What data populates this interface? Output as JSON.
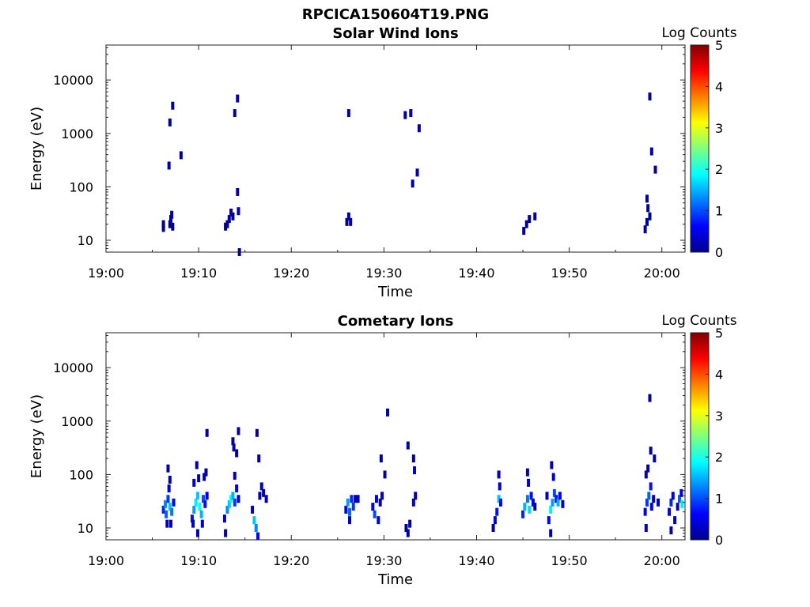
{
  "figure": {
    "filename_title": "RPCICA150604T19.PNG"
  },
  "chart_data": [
    {
      "type": "heatmap",
      "title": "Solar Wind Ions",
      "xlabel": "Time",
      "ylabel": "Energy (eV)",
      "x_ticks": [
        "19:00",
        "19:10",
        "19:20",
        "19:30",
        "19:40",
        "19:50",
        "20:00"
      ],
      "x_range_minutes": [
        0,
        62.5
      ],
      "y_ticks": [
        10,
        100,
        1000,
        10000
      ],
      "y_scale": "log",
      "ylim": [
        6,
        45000
      ],
      "colorbar": {
        "label": "Log Counts",
        "ticks": [
          0,
          1,
          2,
          3,
          4,
          5
        ],
        "range": [
          0,
          5
        ],
        "colormap": "jet"
      },
      "cells": [
        {
          "t": 6.2,
          "e": 17,
          "v": 0.1
        },
        {
          "t": 6.2,
          "e": 20,
          "v": 0.1
        },
        {
          "t": 6.9,
          "e": 20,
          "v": 0.1
        },
        {
          "t": 7.0,
          "e": 25,
          "v": 0.2
        },
        {
          "t": 7.1,
          "e": 30,
          "v": 0.1
        },
        {
          "t": 7.2,
          "e": 18,
          "v": 0.1
        },
        {
          "t": 6.8,
          "e": 250,
          "v": 0.2
        },
        {
          "t": 6.9,
          "e": 1600,
          "v": 0.2
        },
        {
          "t": 7.2,
          "e": 3300,
          "v": 0.2
        },
        {
          "t": 8.1,
          "e": 390,
          "v": 0.2
        },
        {
          "t": 12.9,
          "e": 18,
          "v": 0.1
        },
        {
          "t": 13.1,
          "e": 20,
          "v": 0.1
        },
        {
          "t": 13.3,
          "e": 25,
          "v": 0.2
        },
        {
          "t": 13.5,
          "e": 33,
          "v": 0.1
        },
        {
          "t": 13.7,
          "e": 28,
          "v": 0.1
        },
        {
          "t": 14.3,
          "e": 35,
          "v": 0.2
        },
        {
          "t": 14.2,
          "e": 80,
          "v": 0.2
        },
        {
          "t": 13.9,
          "e": 2400,
          "v": 0.2
        },
        {
          "t": 14.2,
          "e": 4500,
          "v": 0.2
        },
        {
          "t": 14.4,
          "e": 6,
          "v": 0.2
        },
        {
          "t": 26.0,
          "e": 22,
          "v": 0.1
        },
        {
          "t": 26.2,
          "e": 28,
          "v": 0.2
        },
        {
          "t": 26.4,
          "e": 22,
          "v": 0.1
        },
        {
          "t": 26.2,
          "e": 2400,
          "v": 0.2
        },
        {
          "t": 32.3,
          "e": 2200,
          "v": 0.2
        },
        {
          "t": 32.9,
          "e": 2400,
          "v": 0.2
        },
        {
          "t": 33.8,
          "e": 1250,
          "v": 0.2
        },
        {
          "t": 33.6,
          "e": 185,
          "v": 0.2
        },
        {
          "t": 33.1,
          "e": 115,
          "v": 0.2
        },
        {
          "t": 45.1,
          "e": 15,
          "v": 0.1
        },
        {
          "t": 45.4,
          "e": 20,
          "v": 0.1
        },
        {
          "t": 45.7,
          "e": 25,
          "v": 0.1
        },
        {
          "t": 46.3,
          "e": 28,
          "v": 0.2
        },
        {
          "t": 58.2,
          "e": 16,
          "v": 0.1
        },
        {
          "t": 58.4,
          "e": 22,
          "v": 0.1
        },
        {
          "t": 58.5,
          "e": 40,
          "v": 0.1
        },
        {
          "t": 58.4,
          "e": 60,
          "v": 0.2
        },
        {
          "t": 58.7,
          "e": 28,
          "v": 0.1
        },
        {
          "t": 58.7,
          "e": 4900,
          "v": 0.2
        },
        {
          "t": 58.9,
          "e": 460,
          "v": 0.2
        },
        {
          "t": 59.3,
          "e": 210,
          "v": 0.2
        }
      ]
    },
    {
      "type": "heatmap",
      "title": "Cometary Ions",
      "xlabel": "Time",
      "ylabel": "Energy (eV)",
      "x_ticks": [
        "19:00",
        "19:10",
        "19:20",
        "19:30",
        "19:40",
        "19:50",
        "20:00"
      ],
      "x_range_minutes": [
        0,
        62.5
      ],
      "y_ticks": [
        10,
        100,
        1000,
        10000
      ],
      "y_scale": "log",
      "ylim": [
        6,
        45000
      ],
      "colorbar": {
        "label": "Log Counts",
        "ticks": [
          0,
          1,
          2,
          3,
          4,
          5
        ],
        "range": [
          0,
          5
        ],
        "colormap": "jet"
      },
      "cells": [
        {
          "t": 6.2,
          "e": 22,
          "v": 0.8
        },
        {
          "t": 6.4,
          "e": 28,
          "v": 1.3
        },
        {
          "t": 6.5,
          "e": 18,
          "v": 1.1
        },
        {
          "t": 6.7,
          "e": 35,
          "v": 0.9
        },
        {
          "t": 6.9,
          "e": 25,
          "v": 1.6
        },
        {
          "t": 7.1,
          "e": 20,
          "v": 1.2
        },
        {
          "t": 7.3,
          "e": 30,
          "v": 0.6
        },
        {
          "t": 6.6,
          "e": 12,
          "v": 0.3
        },
        {
          "t": 7.0,
          "e": 12,
          "v": 0.3
        },
        {
          "t": 6.8,
          "e": 55,
          "v": 0.4
        },
        {
          "t": 6.9,
          "e": 80,
          "v": 0.3
        },
        {
          "t": 6.7,
          "e": 130,
          "v": 0.2
        },
        {
          "t": 9.3,
          "e": 15,
          "v": 0.7
        },
        {
          "t": 9.5,
          "e": 22,
          "v": 1.4
        },
        {
          "t": 9.7,
          "e": 30,
          "v": 1.8
        },
        {
          "t": 9.9,
          "e": 40,
          "v": 1.6
        },
        {
          "t": 10.1,
          "e": 25,
          "v": 1.9
        },
        {
          "t": 10.3,
          "e": 18,
          "v": 1.5
        },
        {
          "t": 10.5,
          "e": 35,
          "v": 1.0
        },
        {
          "t": 10.7,
          "e": 28,
          "v": 0.7
        },
        {
          "t": 10.9,
          "e": 40,
          "v": 0.5
        },
        {
          "t": 9.4,
          "e": 12,
          "v": 0.3
        },
        {
          "t": 9.9,
          "e": 8,
          "v": 0.3
        },
        {
          "t": 10.4,
          "e": 12,
          "v": 0.4
        },
        {
          "t": 9.5,
          "e": 70,
          "v": 0.4
        },
        {
          "t": 9.8,
          "e": 150,
          "v": 0.2
        },
        {
          "t": 10.0,
          "e": 85,
          "v": 0.3
        },
        {
          "t": 10.6,
          "e": 90,
          "v": 0.2
        },
        {
          "t": 10.8,
          "e": 110,
          "v": 0.2
        },
        {
          "t": 10.9,
          "e": 600,
          "v": 0.2
        },
        {
          "t": 12.8,
          "e": 15,
          "v": 0.3
        },
        {
          "t": 13.1,
          "e": 22,
          "v": 1.3
        },
        {
          "t": 13.3,
          "e": 28,
          "v": 1.6
        },
        {
          "t": 13.5,
          "e": 35,
          "v": 1.9
        },
        {
          "t": 13.7,
          "e": 40,
          "v": 1.5
        },
        {
          "t": 13.9,
          "e": 30,
          "v": 0.9
        },
        {
          "t": 14.1,
          "e": 55,
          "v": 0.5
        },
        {
          "t": 14.3,
          "e": 35,
          "v": 0.4
        },
        {
          "t": 12.9,
          "e": 8,
          "v": 0.3
        },
        {
          "t": 13.9,
          "e": 95,
          "v": 0.3
        },
        {
          "t": 13.7,
          "e": 420,
          "v": 0.2
        },
        {
          "t": 13.8,
          "e": 320,
          "v": 0.2
        },
        {
          "t": 14.1,
          "e": 250,
          "v": 0.2
        },
        {
          "t": 14.3,
          "e": 650,
          "v": 0.2
        },
        {
          "t": 15.8,
          "e": 22,
          "v": 0.4
        },
        {
          "t": 16.0,
          "e": 14,
          "v": 1.6
        },
        {
          "t": 16.2,
          "e": 10,
          "v": 1.3
        },
        {
          "t": 16.4,
          "e": 7,
          "v": 0.6
        },
        {
          "t": 16.6,
          "e": 40,
          "v": 0.3
        },
        {
          "t": 16.8,
          "e": 60,
          "v": 0.4
        },
        {
          "t": 17.0,
          "e": 45,
          "v": 0.3
        },
        {
          "t": 17.3,
          "e": 35,
          "v": 0.3
        },
        {
          "t": 16.5,
          "e": 200,
          "v": 0.2
        },
        {
          "t": 16.3,
          "e": 600,
          "v": 0.2
        },
        {
          "t": 25.9,
          "e": 22,
          "v": 0.6
        },
        {
          "t": 26.1,
          "e": 30,
          "v": 1.4
        },
        {
          "t": 26.3,
          "e": 20,
          "v": 1.1
        },
        {
          "t": 26.5,
          "e": 35,
          "v": 0.8
        },
        {
          "t": 26.7,
          "e": 25,
          "v": 0.9
        },
        {
          "t": 26.9,
          "e": 35,
          "v": 0.4
        },
        {
          "t": 27.2,
          "e": 35,
          "v": 0.3
        },
        {
          "t": 26.3,
          "e": 14,
          "v": 0.3
        },
        {
          "t": 28.8,
          "e": 25,
          "v": 0.6
        },
        {
          "t": 29.0,
          "e": 18,
          "v": 1.0
        },
        {
          "t": 29.2,
          "e": 35,
          "v": 0.6
        },
        {
          "t": 29.4,
          "e": 14,
          "v": 0.4
        },
        {
          "t": 29.6,
          "e": 30,
          "v": 0.3
        },
        {
          "t": 29.8,
          "e": 40,
          "v": 0.3
        },
        {
          "t": 29.7,
          "e": 200,
          "v": 0.2
        },
        {
          "t": 30.1,
          "e": 100,
          "v": 0.2
        },
        {
          "t": 30.4,
          "e": 1450,
          "v": 0.2
        },
        {
          "t": 32.4,
          "e": 10,
          "v": 0.2
        },
        {
          "t": 32.6,
          "e": 8,
          "v": 0.2
        },
        {
          "t": 32.8,
          "e": 12,
          "v": 0.2
        },
        {
          "t": 33.2,
          "e": 30,
          "v": 0.4
        },
        {
          "t": 33.4,
          "e": 40,
          "v": 0.3
        },
        {
          "t": 33.3,
          "e": 120,
          "v": 0.4
        },
        {
          "t": 33.2,
          "e": 200,
          "v": 0.2
        },
        {
          "t": 32.6,
          "e": 350,
          "v": 0.2
        },
        {
          "t": 41.8,
          "e": 10,
          "v": 0.2
        },
        {
          "t": 42.0,
          "e": 14,
          "v": 0.4
        },
        {
          "t": 42.2,
          "e": 20,
          "v": 0.7
        },
        {
          "t": 42.4,
          "e": 35,
          "v": 1.6
        },
        {
          "t": 42.6,
          "e": 30,
          "v": 0.6
        },
        {
          "t": 42.5,
          "e": 60,
          "v": 0.4
        },
        {
          "t": 42.4,
          "e": 100,
          "v": 0.3
        },
        {
          "t": 45.0,
          "e": 18,
          "v": 0.8
        },
        {
          "t": 45.2,
          "e": 25,
          "v": 1.5
        },
        {
          "t": 45.5,
          "e": 35,
          "v": 1.2
        },
        {
          "t": 45.7,
          "e": 22,
          "v": 1.7
        },
        {
          "t": 45.9,
          "e": 40,
          "v": 0.7
        },
        {
          "t": 46.1,
          "e": 30,
          "v": 0.5
        },
        {
          "t": 45.6,
          "e": 70,
          "v": 0.4
        },
        {
          "t": 45.5,
          "e": 110,
          "v": 0.3
        },
        {
          "t": 46.3,
          "e": 25,
          "v": 0.3
        },
        {
          "t": 47.8,
          "e": 14,
          "v": 0.6
        },
        {
          "t": 48.0,
          "e": 22,
          "v": 1.8
        },
        {
          "t": 48.2,
          "e": 30,
          "v": 1.4
        },
        {
          "t": 48.4,
          "e": 45,
          "v": 1.0
        },
        {
          "t": 48.6,
          "e": 35,
          "v": 0.7
        },
        {
          "t": 48.8,
          "e": 30,
          "v": 1.5
        },
        {
          "t": 49.0,
          "e": 40,
          "v": 0.6
        },
        {
          "t": 48.3,
          "e": 90,
          "v": 0.4
        },
        {
          "t": 48.1,
          "e": 150,
          "v": 0.3
        },
        {
          "t": 48.0,
          "e": 8,
          "v": 0.3
        },
        {
          "t": 47.6,
          "e": 40,
          "v": 0.3
        },
        {
          "t": 49.3,
          "e": 28,
          "v": 0.3
        },
        {
          "t": 58.2,
          "e": 20,
          "v": 0.5
        },
        {
          "t": 58.4,
          "e": 30,
          "v": 0.9
        },
        {
          "t": 58.6,
          "e": 40,
          "v": 1.1
        },
        {
          "t": 58.8,
          "e": 60,
          "v": 0.7
        },
        {
          "t": 58.9,
          "e": 25,
          "v": 0.6
        },
        {
          "t": 59.1,
          "e": 35,
          "v": 0.4
        },
        {
          "t": 58.3,
          "e": 100,
          "v": 0.3
        },
        {
          "t": 58.5,
          "e": 130,
          "v": 0.2
        },
        {
          "t": 58.8,
          "e": 280,
          "v": 0.2
        },
        {
          "t": 59.2,
          "e": 200,
          "v": 0.2
        },
        {
          "t": 58.7,
          "e": 2700,
          "v": 0.2
        },
        {
          "t": 58.3,
          "e": 10,
          "v": 0.4
        },
        {
          "t": 59.6,
          "e": 30,
          "v": 0.3
        },
        {
          "t": 60.8,
          "e": 20,
          "v": 0.5
        },
        {
          "t": 61.0,
          "e": 30,
          "v": 0.8
        },
        {
          "t": 61.2,
          "e": 40,
          "v": 0.5
        },
        {
          "t": 61.4,
          "e": 14,
          "v": 0.3
        },
        {
          "t": 61.0,
          "e": 9,
          "v": 0.3
        },
        {
          "t": 61.7,
          "e": 25,
          "v": 0.4
        },
        {
          "t": 61.9,
          "e": 35,
          "v": 1.1
        },
        {
          "t": 62.1,
          "e": 45,
          "v": 0.5
        },
        {
          "t": 62.2,
          "e": 28,
          "v": 1.8
        }
      ]
    }
  ]
}
